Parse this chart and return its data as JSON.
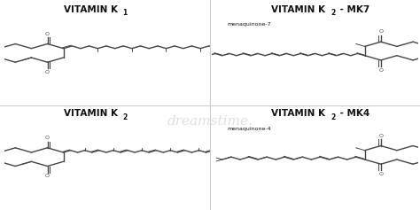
{
  "background_color": "#ffffff",
  "line_color": "#444444",
  "title_color": "#111111",
  "panels": [
    {
      "title": "VITAMIN K",
      "sub": "1",
      "extra": "",
      "subtitle": "",
      "quad": 0
    },
    {
      "title": "VITAMIN K",
      "sub": "2",
      "extra": " - MK7",
      "subtitle": "menaquinone-7",
      "quad": 1
    },
    {
      "title": "VITAMIN K",
      "sub": "2",
      "extra": "",
      "subtitle": "",
      "quad": 2
    },
    {
      "title": "VITAMIN K",
      "sub": "2",
      "extra": " - MK4",
      "subtitle": "menaquinone-4",
      "quad": 3
    }
  ],
  "divider_color": "#cccccc",
  "watermark": "dreamstime.",
  "lw_main": 1.0,
  "lw_thin": 0.7
}
